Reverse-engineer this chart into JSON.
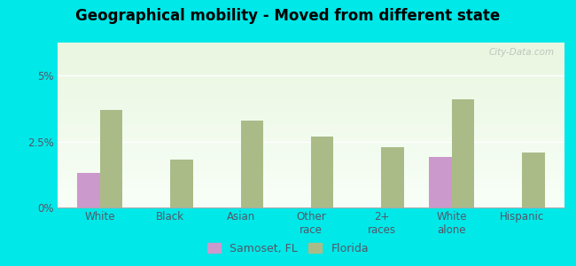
{
  "title": "Geographical mobility - Moved from different state",
  "categories": [
    "White",
    "Black",
    "Asian",
    "Other\nrace",
    "2+\nraces",
    "White\nalone",
    "Hispanic"
  ],
  "samoset_values": [
    1.3,
    0.0,
    0.0,
    0.0,
    0.0,
    1.9,
    0.0
  ],
  "florida_values": [
    3.7,
    1.8,
    3.3,
    2.7,
    2.3,
    4.1,
    2.1
  ],
  "samoset_color": "#cc99cc",
  "florida_color": "#aabb88",
  "background_outer": "#00e8e8",
  "ylim": [
    0,
    6.25
  ],
  "yticks": [
    0,
    2.5,
    5.0
  ],
  "ytick_labels": [
    "0%",
    "2.5%",
    "5%"
  ],
  "bar_width": 0.32,
  "legend_samoset": "Samoset, FL",
  "legend_florida": "Florida",
  "watermark": "City-Data.com",
  "title_fontsize": 12,
  "tick_fontsize": 8.5,
  "legend_fontsize": 9
}
